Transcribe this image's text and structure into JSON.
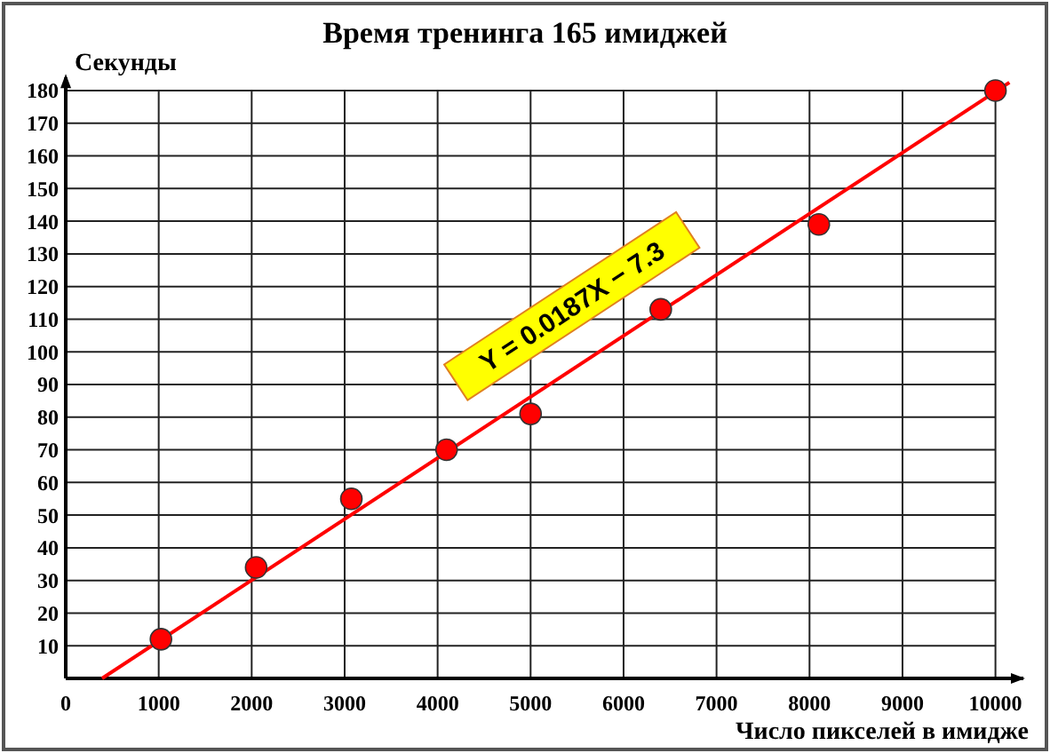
{
  "chart_data": {
    "type": "scatter",
    "title": "Время тренинга 165 имиджей",
    "xlabel": "Число пикселей в имидже",
    "ylabel": "Секунды",
    "x": [
      1024,
      2048,
      3072,
      4096,
      5000,
      6400,
      8100,
      10000
    ],
    "series": [
      {
        "color": "#ff0000",
        "marker": "circle",
        "values": [
          12,
          34,
          55,
          70,
          81,
          113,
          139,
          180
        ]
      },
      {
        "type": "line",
        "color": "#ff0000",
        "marker": "none",
        "x": [
          391,
          10150
        ],
        "values": [
          0,
          182.5
        ]
      }
    ],
    "xlim": [
      0,
      10300
    ],
    "ylim": [
      0,
      184
    ],
    "xticks": [
      0,
      1000,
      2000,
      3000,
      4000,
      5000,
      6000,
      7000,
      8000,
      9000,
      10000
    ],
    "yticks": [
      {
        "value": 0,
        "label": null
      },
      10,
      20,
      30,
      40,
      50,
      60,
      70,
      80,
      90,
      100,
      110,
      120,
      130,
      140,
      150,
      160,
      170,
      180
    ],
    "grid": true,
    "annotations": [
      "Y = 0.0187X − 7.3"
    ]
  }
}
